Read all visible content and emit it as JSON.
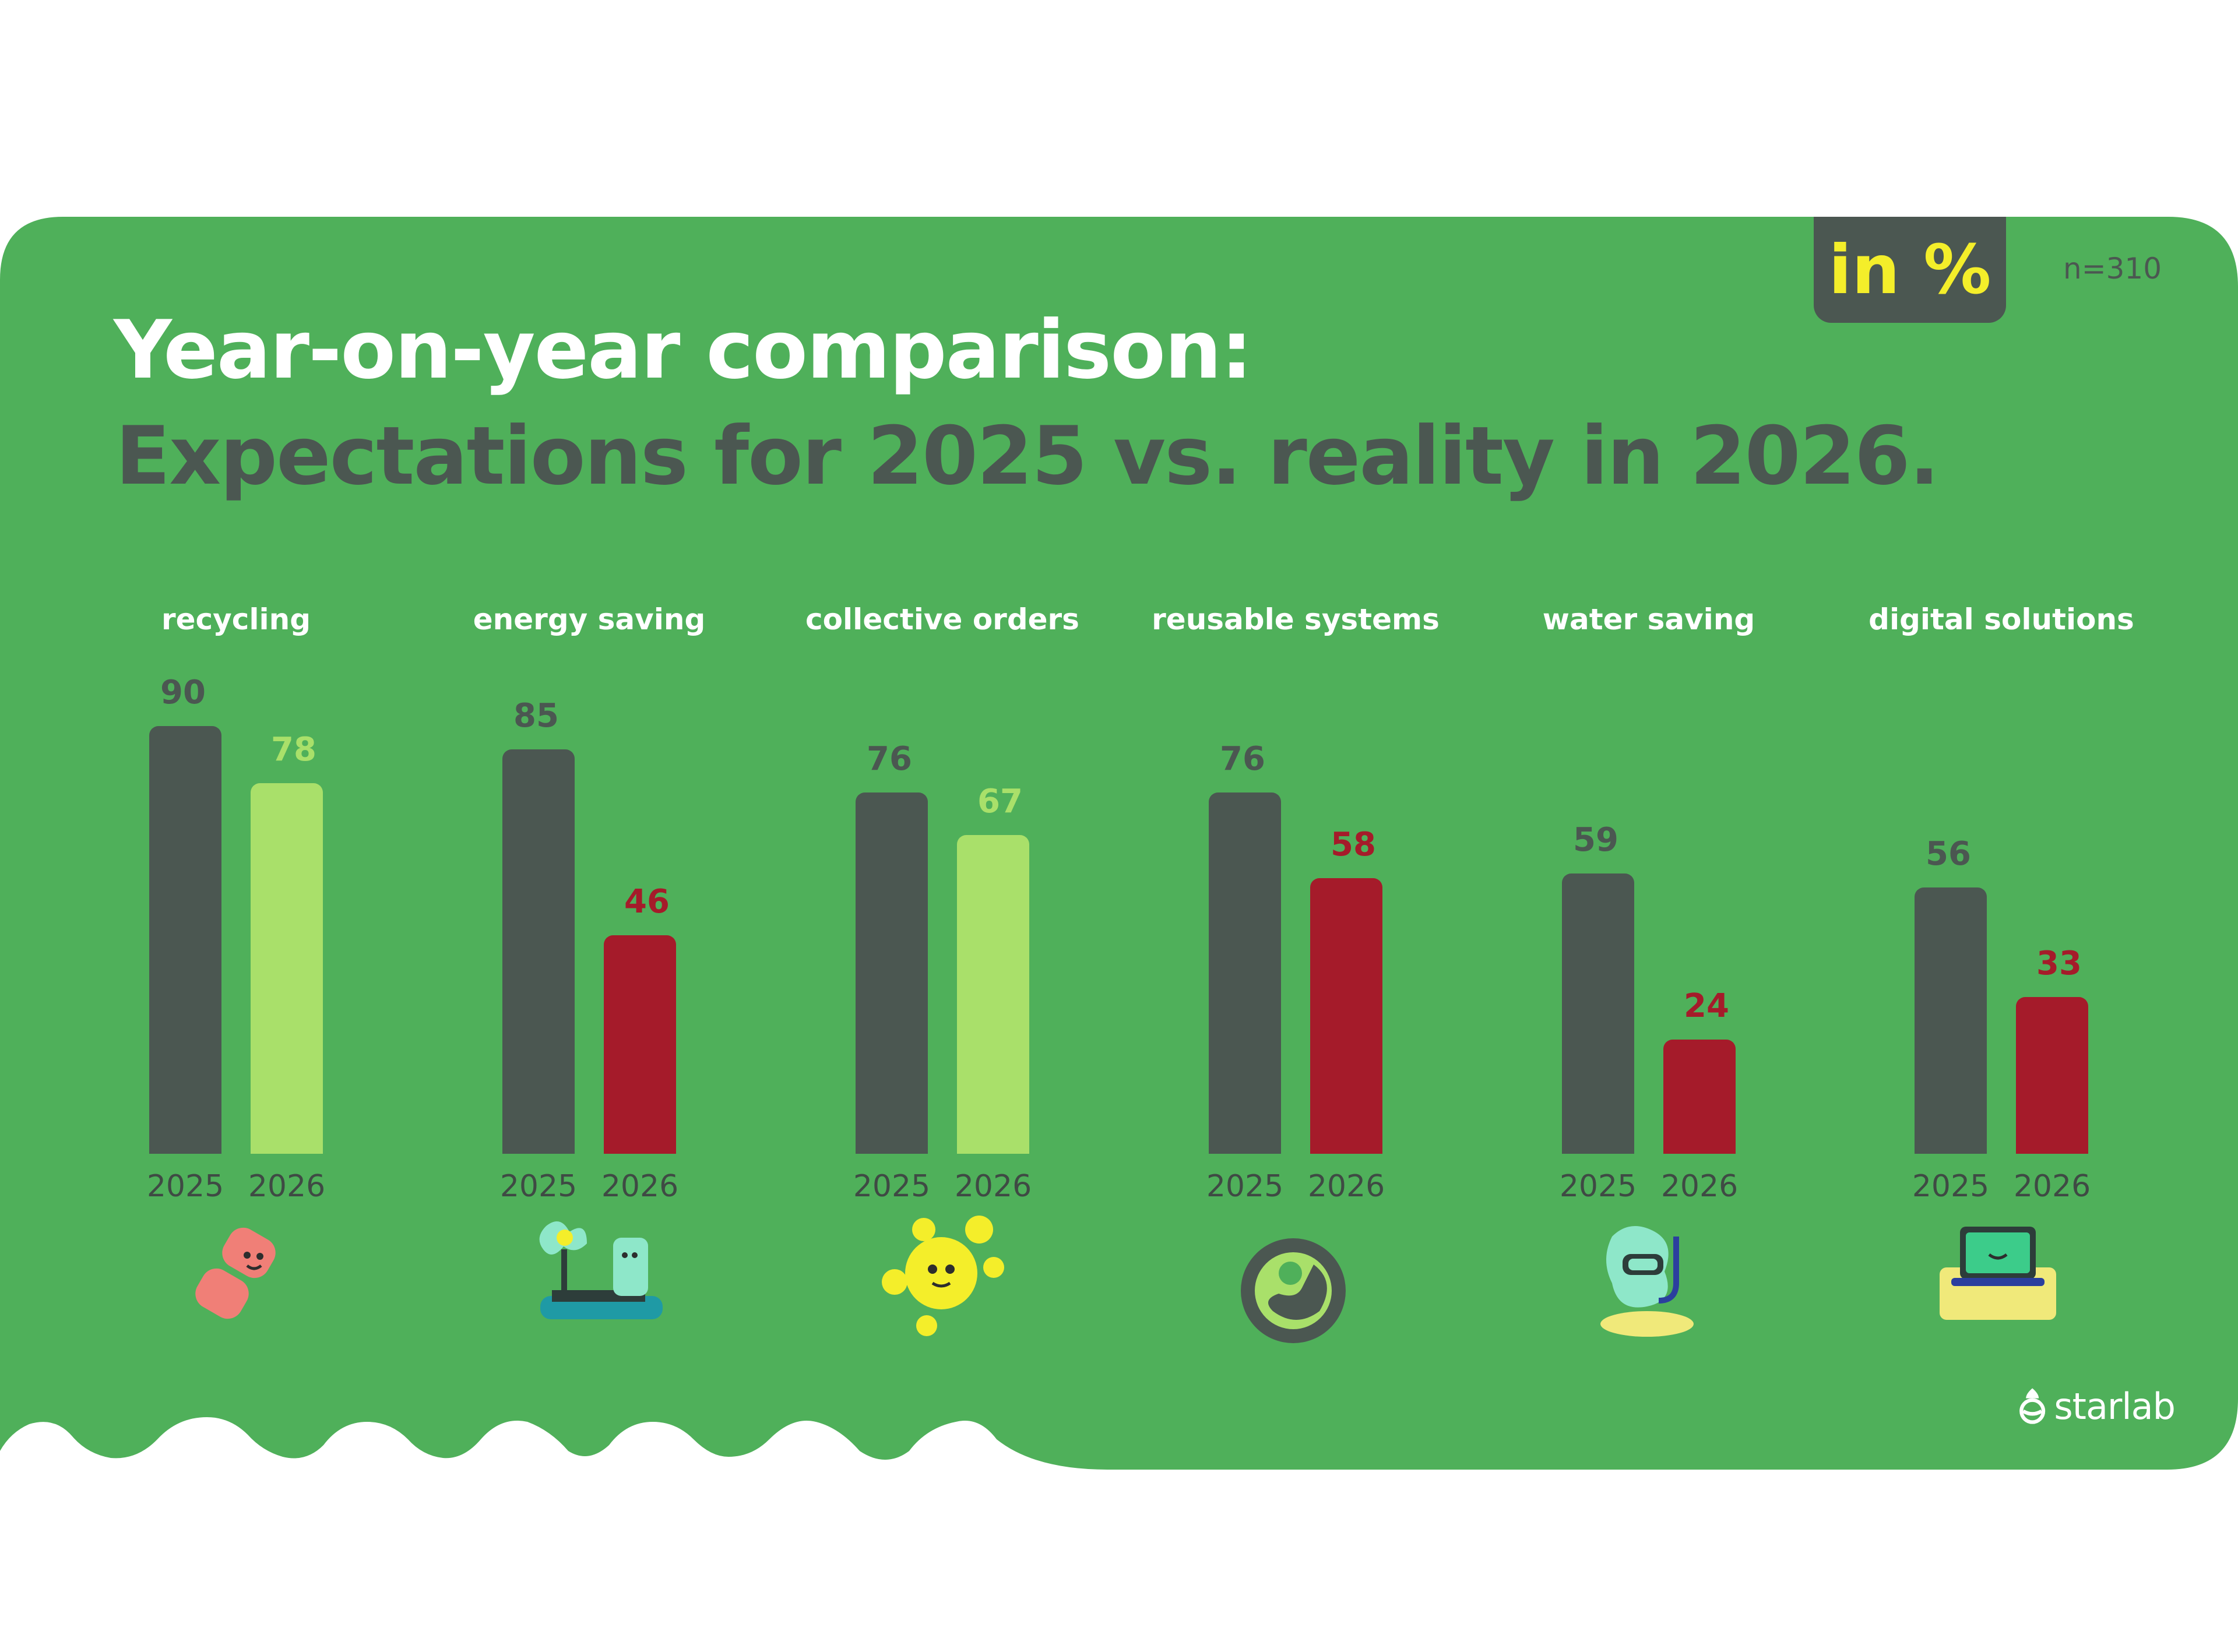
{
  "title": "Year-on-year comparison:",
  "subtitle": "Expectations for 2025 vs. reality in 2026.",
  "unit_badge": "in %",
  "sample_size": "n=310",
  "brand": "starlab",
  "colors": {
    "background": "#4fb05a",
    "expected": "#4b5751",
    "increase_or_stable": "#a9e06a",
    "decline": "#a51b2a",
    "title_light": "#ffffff",
    "title_dark": "#4b5751",
    "badge_text": "#f4ee2a"
  },
  "chart_data": {
    "type": "bar",
    "title": "Year-on-year comparison: Expectations for 2025 vs. reality in 2026.",
    "xlabel": "",
    "ylabel": "in %",
    "ylim": [
      0,
      100
    ],
    "grid": false,
    "categories": [
      "recycling",
      "energy saving",
      "collective orders",
      "reusable systems",
      "water saving",
      "digital solutions"
    ],
    "series": [
      {
        "name": "2025",
        "values": [
          90,
          85,
          76,
          76,
          59,
          56
        ]
      },
      {
        "name": "2026",
        "values": [
          78,
          46,
          67,
          58,
          24,
          33
        ]
      }
    ],
    "year_labels": [
      "2025",
      "2026"
    ],
    "icons": [
      "recycling-icon",
      "energy-saving-icon",
      "collective-orders-icon",
      "reusable-systems-icon",
      "water-saving-icon",
      "digital-solutions-icon"
    ]
  }
}
